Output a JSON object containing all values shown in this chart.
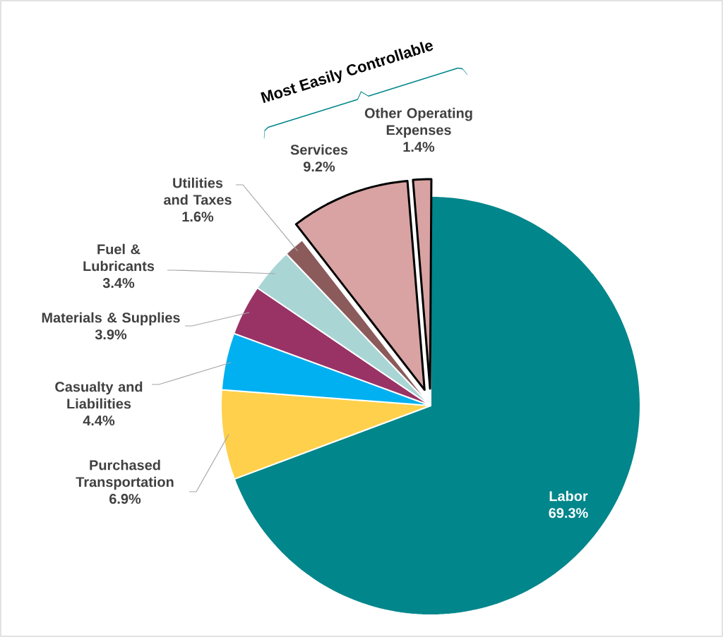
{
  "chart_data": {
    "type": "pie",
    "categories": [
      "Labor",
      "Purchased Transportation",
      "Casualty and Liabilities",
      "Materials & Supplies",
      "Fuel & Lubricants",
      "Utilities and Taxes",
      "Services",
      "Other Operating Expenses"
    ],
    "values": [
      69.3,
      6.9,
      4.4,
      3.9,
      3.4,
      1.6,
      9.2,
      1.4
    ],
    "value_labels": [
      "69.3%",
      "6.9%",
      "4.4%",
      "3.9%",
      "3.4%",
      "1.6%",
      "9.2%",
      "1.4%"
    ],
    "colors": [
      "#00868b",
      "#ffd04b",
      "#00b0f0",
      "#993366",
      "#a9d5d5",
      "#8b5a5a",
      "#d9a3a3",
      "#d9a3a3"
    ],
    "annotations": [
      "Most Easily Controllable"
    ]
  }
}
